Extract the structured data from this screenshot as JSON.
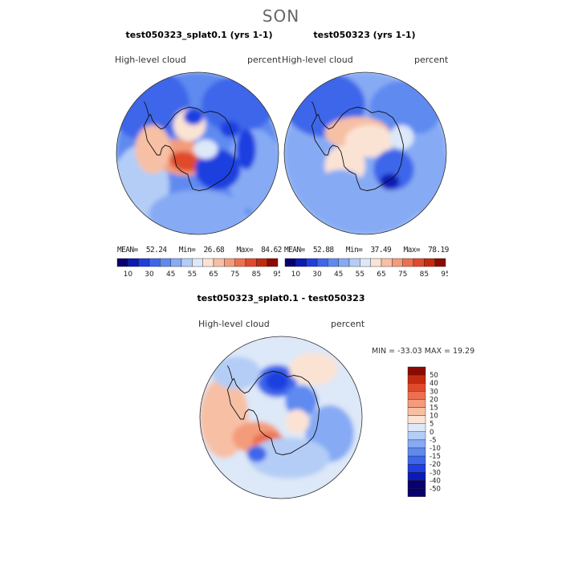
{
  "season": "SON",
  "panels": [
    {
      "title": "test050323_splat0.1 (yrs 1-1)",
      "variable": "High-level cloud",
      "units": "percent",
      "stats": {
        "mean": "52.24",
        "min": "26.68",
        "max": "84.62"
      },
      "stats_line": "MEAN=  52.24   Min=  26.68   Max=  84.62"
    },
    {
      "title": "test050323 (yrs 1-1)",
      "variable": "High-level cloud",
      "units": "percent",
      "stats": {
        "mean": "52.88",
        "min": "37.49",
        "max": "78.19"
      },
      "stats_line": "MEAN=  52.88   Min=  37.49   Max=  78.19"
    }
  ],
  "diff_panel": {
    "title": "test050323_splat0.1 - test050323",
    "variable": "High-level cloud",
    "units": "percent",
    "minmax_line": "MIN = -33.03  MAX =  19.29"
  },
  "colors": {
    "top_scale": [
      "#08006e",
      "#0a1bb5",
      "#1f3fe0",
      "#3d66ea",
      "#5e8af0",
      "#86aaf4",
      "#b3cdf6",
      "#dde8f8",
      "#fbe3d4",
      "#f7c0a4",
      "#f39b7a",
      "#ec7050",
      "#e04a2c",
      "#c42a10",
      "#8c0a00"
    ],
    "diff_scale": [
      "#08006e",
      "#0a1bb5",
      "#1f3fe0",
      "#3d66ea",
      "#5e8af0",
      "#86aaf4",
      "#b3cdf6",
      "#dde8f8",
      "#fbe3d4",
      "#f7c0a4",
      "#f39b7a",
      "#ec7050",
      "#e04a2c",
      "#c42a10",
      "#8c0a00"
    ]
  },
  "chart_data": [
    {
      "type": "heatmap",
      "projection": "south polar stereographic",
      "title": "test050323_splat0.1 (yrs 1-1)",
      "variable": "High-level cloud",
      "units": "percent",
      "mean": 52.24,
      "min": 26.68,
      "max": 84.62,
      "colorbar_levels": [
        "10",
        "30",
        "45",
        "55",
        "65",
        "75",
        "85",
        "95"
      ]
    },
    {
      "type": "heatmap",
      "projection": "south polar stereographic",
      "title": "test050323 (yrs 1-1)",
      "variable": "High-level cloud",
      "units": "percent",
      "mean": 52.88,
      "min": 37.49,
      "max": 78.19,
      "colorbar_levels": [
        "10",
        "30",
        "45",
        "55",
        "65",
        "75",
        "85",
        "95"
      ]
    },
    {
      "type": "heatmap",
      "projection": "south polar stereographic",
      "title": "test050323_splat0.1 - test050323",
      "variable": "High-level cloud",
      "units": "percent",
      "min": -33.03,
      "max": 19.29,
      "colorbar_levels": [
        "50",
        "40",
        "30",
        "20",
        "15",
        "10",
        "5",
        "0",
        "-5",
        "-10",
        "-15",
        "-20",
        "-30",
        "-40",
        "-50"
      ]
    }
  ]
}
